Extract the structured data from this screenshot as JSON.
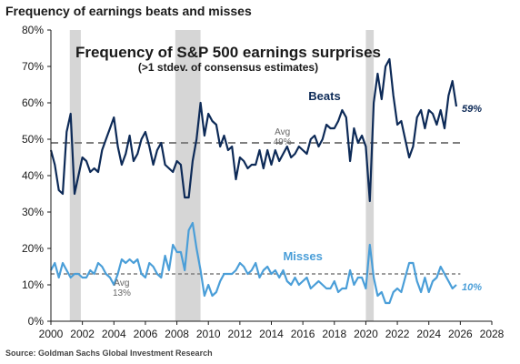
{
  "page_title": "Frequency of earnings beats and misses",
  "source": "Source: Goldman Sachs Global Investment Research",
  "chart_data": {
    "type": "line",
    "title": "Frequency of S&P 500 earnings surprises",
    "subtitle": "(>1 stdev. of consensus estimates)",
    "xlabel": "",
    "ylabel": "",
    "xlim": [
      2000,
      2028
    ],
    "ylim": [
      0,
      80
    ],
    "x_ticks": [
      2000,
      2002,
      2004,
      2006,
      2008,
      2010,
      2012,
      2014,
      2016,
      2018,
      2020,
      2022,
      2024,
      2026,
      2028
    ],
    "y_ticks": [
      {
        "value": 0,
        "label": "0%"
      },
      {
        "value": 10,
        "label": "10%"
      },
      {
        "value": 20,
        "label": "20%"
      },
      {
        "value": 30,
        "label": "30%"
      },
      {
        "value": 40,
        "label": "40%"
      },
      {
        "value": 50,
        "label": "50%"
      },
      {
        "value": 60,
        "label": "60%"
      },
      {
        "value": 70,
        "label": "70%"
      },
      {
        "value": 80,
        "label": "80%"
      }
    ],
    "grid": false,
    "recessions": [
      [
        2001.2,
        2001.9
      ],
      [
        2007.9,
        2009.5
      ],
      [
        2020.0,
        2020.5
      ]
    ],
    "colors": {
      "beats": "#0d2a57",
      "misses": "#4a9ed8",
      "avg_line": "#7f7f7f",
      "recession": "#d6d6d6",
      "axis": "#1a1a1a"
    },
    "series": [
      {
        "name": "Beats",
        "end_label": "59%",
        "avg": 49,
        "avg_label": [
          "Avg",
          "49%"
        ],
        "points": [
          [
            2000.0,
            47
          ],
          [
            2000.25,
            43
          ],
          [
            2000.5,
            36
          ],
          [
            2000.75,
            35
          ],
          [
            2001.0,
            52
          ],
          [
            2001.25,
            57
          ],
          [
            2001.5,
            35
          ],
          [
            2001.75,
            40
          ],
          [
            2002.0,
            45
          ],
          [
            2002.25,
            44
          ],
          [
            2002.5,
            41
          ],
          [
            2002.75,
            42
          ],
          [
            2003.0,
            41
          ],
          [
            2003.25,
            47
          ],
          [
            2003.5,
            50
          ],
          [
            2003.75,
            53
          ],
          [
            2004.0,
            56
          ],
          [
            2004.25,
            48
          ],
          [
            2004.5,
            43
          ],
          [
            2004.75,
            46
          ],
          [
            2005.0,
            51
          ],
          [
            2005.25,
            44
          ],
          [
            2005.5,
            46
          ],
          [
            2005.75,
            50
          ],
          [
            2006.0,
            52
          ],
          [
            2006.25,
            48
          ],
          [
            2006.5,
            43
          ],
          [
            2006.75,
            47
          ],
          [
            2007.0,
            49
          ],
          [
            2007.25,
            43
          ],
          [
            2007.5,
            42
          ],
          [
            2007.75,
            41
          ],
          [
            2008.0,
            44
          ],
          [
            2008.25,
            43
          ],
          [
            2008.5,
            34
          ],
          [
            2008.75,
            34
          ],
          [
            2009.0,
            44
          ],
          [
            2009.25,
            50
          ],
          [
            2009.5,
            60
          ],
          [
            2009.75,
            51
          ],
          [
            2010.0,
            57
          ],
          [
            2010.25,
            55
          ],
          [
            2010.5,
            54
          ],
          [
            2010.75,
            48
          ],
          [
            2011.0,
            51
          ],
          [
            2011.25,
            47
          ],
          [
            2011.5,
            48
          ],
          [
            2011.75,
            39
          ],
          [
            2012.0,
            45
          ],
          [
            2012.25,
            44
          ],
          [
            2012.5,
            42
          ],
          [
            2012.75,
            43
          ],
          [
            2013.0,
            43
          ],
          [
            2013.25,
            47
          ],
          [
            2013.5,
            42
          ],
          [
            2013.75,
            47
          ],
          [
            2014.0,
            43
          ],
          [
            2014.25,
            47
          ],
          [
            2014.5,
            44
          ],
          [
            2014.75,
            46
          ],
          [
            2015.0,
            48
          ],
          [
            2015.25,
            45
          ],
          [
            2015.5,
            46
          ],
          [
            2015.75,
            48
          ],
          [
            2016.0,
            47
          ],
          [
            2016.25,
            46
          ],
          [
            2016.5,
            50
          ],
          [
            2016.75,
            51
          ],
          [
            2017.0,
            48
          ],
          [
            2017.25,
            50
          ],
          [
            2017.5,
            54
          ],
          [
            2017.75,
            53
          ],
          [
            2018.0,
            53
          ],
          [
            2018.25,
            55
          ],
          [
            2018.5,
            58
          ],
          [
            2018.75,
            56
          ],
          [
            2019.0,
            44
          ],
          [
            2019.25,
            53
          ],
          [
            2019.5,
            49
          ],
          [
            2019.75,
            51
          ],
          [
            2020.0,
            48
          ],
          [
            2020.25,
            33
          ],
          [
            2020.5,
            60
          ],
          [
            2020.75,
            68
          ],
          [
            2021.0,
            61
          ],
          [
            2021.25,
            70
          ],
          [
            2021.5,
            72
          ],
          [
            2021.75,
            62
          ],
          [
            2022.0,
            54
          ],
          [
            2022.25,
            55
          ],
          [
            2022.5,
            50
          ],
          [
            2022.75,
            45
          ],
          [
            2023.0,
            48
          ],
          [
            2023.25,
            56
          ],
          [
            2023.5,
            58
          ],
          [
            2023.75,
            53
          ],
          [
            2024.0,
            58
          ],
          [
            2024.25,
            57
          ],
          [
            2024.5,
            54
          ],
          [
            2024.75,
            58
          ],
          [
            2025.0,
            53
          ],
          [
            2025.25,
            62
          ],
          [
            2025.5,
            66
          ],
          [
            2025.75,
            59
          ]
        ]
      },
      {
        "name": "Misses",
        "end_label": "10%",
        "avg": 13,
        "avg_label": [
          "Avg",
          "13%"
        ],
        "points": [
          [
            2000.0,
            14
          ],
          [
            2000.25,
            16
          ],
          [
            2000.5,
            12
          ],
          [
            2000.75,
            16
          ],
          [
            2001.0,
            14
          ],
          [
            2001.25,
            12
          ],
          [
            2001.5,
            13
          ],
          [
            2001.75,
            13
          ],
          [
            2002.0,
            12
          ],
          [
            2002.25,
            12
          ],
          [
            2002.5,
            14
          ],
          [
            2002.75,
            13
          ],
          [
            2003.0,
            16
          ],
          [
            2003.25,
            15
          ],
          [
            2003.5,
            13
          ],
          [
            2003.75,
            12
          ],
          [
            2004.0,
            10
          ],
          [
            2004.25,
            13
          ],
          [
            2004.5,
            17
          ],
          [
            2004.75,
            16
          ],
          [
            2005.0,
            17
          ],
          [
            2005.25,
            16
          ],
          [
            2005.5,
            17
          ],
          [
            2005.75,
            13
          ],
          [
            2006.0,
            12
          ],
          [
            2006.25,
            16
          ],
          [
            2006.5,
            15
          ],
          [
            2006.75,
            13
          ],
          [
            2007.0,
            12
          ],
          [
            2007.25,
            18
          ],
          [
            2007.5,
            14
          ],
          [
            2007.75,
            21
          ],
          [
            2008.0,
            19
          ],
          [
            2008.25,
            19
          ],
          [
            2008.5,
            14
          ],
          [
            2008.75,
            25
          ],
          [
            2009.0,
            27
          ],
          [
            2009.25,
            20
          ],
          [
            2009.5,
            14
          ],
          [
            2009.75,
            7
          ],
          [
            2010.0,
            10
          ],
          [
            2010.25,
            7
          ],
          [
            2010.5,
            8
          ],
          [
            2010.75,
            11
          ],
          [
            2011.0,
            13
          ],
          [
            2011.25,
            13
          ],
          [
            2011.5,
            13
          ],
          [
            2011.75,
            14
          ],
          [
            2012.0,
            16
          ],
          [
            2012.25,
            15
          ],
          [
            2012.5,
            13
          ],
          [
            2012.75,
            14
          ],
          [
            2013.0,
            16
          ],
          [
            2013.25,
            12
          ],
          [
            2013.5,
            14
          ],
          [
            2013.75,
            15
          ],
          [
            2014.0,
            13
          ],
          [
            2014.25,
            14
          ],
          [
            2014.5,
            12
          ],
          [
            2014.75,
            14
          ],
          [
            2015.0,
            11
          ],
          [
            2015.25,
            10
          ],
          [
            2015.5,
            12
          ],
          [
            2015.75,
            10
          ],
          [
            2016.0,
            11
          ],
          [
            2016.25,
            12
          ],
          [
            2016.5,
            9
          ],
          [
            2016.75,
            10
          ],
          [
            2017.0,
            11
          ],
          [
            2017.25,
            10
          ],
          [
            2017.5,
            9
          ],
          [
            2017.75,
            9
          ],
          [
            2018.0,
            11
          ],
          [
            2018.25,
            8
          ],
          [
            2018.5,
            9
          ],
          [
            2018.75,
            9
          ],
          [
            2019.0,
            14
          ],
          [
            2019.25,
            10
          ],
          [
            2019.5,
            12
          ],
          [
            2019.75,
            12
          ],
          [
            2020.0,
            9
          ],
          [
            2020.25,
            21
          ],
          [
            2020.5,
            12
          ],
          [
            2020.75,
            7
          ],
          [
            2021.0,
            8
          ],
          [
            2021.25,
            5
          ],
          [
            2021.5,
            5
          ],
          [
            2021.75,
            8
          ],
          [
            2022.0,
            9
          ],
          [
            2022.25,
            8
          ],
          [
            2022.5,
            12
          ],
          [
            2022.75,
            16
          ],
          [
            2023.0,
            16
          ],
          [
            2023.25,
            11
          ],
          [
            2023.5,
            8
          ],
          [
            2023.75,
            12
          ],
          [
            2024.0,
            8
          ],
          [
            2024.25,
            11
          ],
          [
            2024.5,
            12
          ],
          [
            2024.75,
            15
          ],
          [
            2025.0,
            13
          ],
          [
            2025.25,
            11
          ],
          [
            2025.5,
            9
          ],
          [
            2025.75,
            10
          ]
        ]
      }
    ]
  }
}
